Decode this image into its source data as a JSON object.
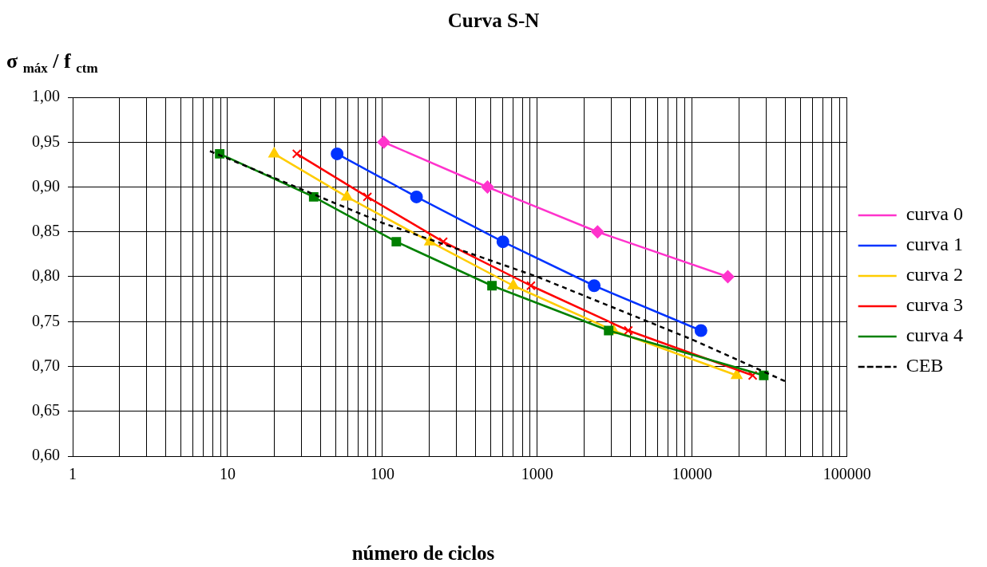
{
  "chart_data": {
    "type": "line",
    "title": "Curva S-N",
    "xlabel": "número de ciclos",
    "ylabel": "σ $_{máx}$ / f $_{ctm}$",
    "log": "x",
    "grid": true,
    "legend": "right",
    "xlim": [
      1,
      100000
    ],
    "xticks": [
      1,
      {
        "value": 2,
        "label": null
      },
      {
        "value": 3,
        "label": null
      },
      {
        "value": 4,
        "label": null
      },
      {
        "value": 5,
        "label": null
      },
      {
        "value": 6,
        "label": null
      },
      {
        "value": 7,
        "label": null
      },
      {
        "value": 8,
        "label": null
      },
      {
        "value": 9,
        "label": null
      },
      10,
      {
        "value": 20,
        "label": null
      },
      {
        "value": 30,
        "label": null
      },
      {
        "value": 40,
        "label": null
      },
      {
        "value": 50,
        "label": null
      },
      {
        "value": 60,
        "label": null
      },
      {
        "value": 70,
        "label": null
      },
      {
        "value": 80,
        "label": null
      },
      {
        "value": 90,
        "label": null
      },
      100,
      {
        "value": 200,
        "label": null
      },
      {
        "value": 300,
        "label": null
      },
      {
        "value": 400,
        "label": null
      },
      {
        "value": 500,
        "label": null
      },
      {
        "value": 600,
        "label": null
      },
      {
        "value": 700,
        "label": null
      },
      {
        "value": 800,
        "label": null
      },
      {
        "value": 900,
        "label": null
      },
      1000,
      {
        "value": 2000,
        "label": null
      },
      {
        "value": 3000,
        "label": null
      },
      {
        "value": 4000,
        "label": null
      },
      {
        "value": 5000,
        "label": null
      },
      {
        "value": 6000,
        "label": null
      },
      {
        "value": 7000,
        "label": null
      },
      {
        "value": 8000,
        "label": null
      },
      {
        "value": 9000,
        "label": null
      },
      10000,
      {
        "value": 20000,
        "label": null
      },
      {
        "value": 30000,
        "label": null
      },
      {
        "value": 40000,
        "label": null
      },
      {
        "value": 50000,
        "label": null
      },
      {
        "value": 60000,
        "label": null
      },
      {
        "value": 70000,
        "label": null
      },
      {
        "value": 80000,
        "label": null
      },
      {
        "value": 90000,
        "label": null
      },
      100000
    ],
    "ylim": [
      0.6,
      1.0
    ],
    "yticks": [
      {
        "value": 0.6,
        "label": "0,60"
      },
      {
        "value": 0.65,
        "label": "0,65"
      },
      {
        "value": 0.7,
        "label": "0,70"
      },
      {
        "value": 0.75,
        "label": "0,75"
      },
      {
        "value": 0.8,
        "label": "0,80"
      },
      {
        "value": 0.85,
        "label": "0,85"
      },
      {
        "value": 0.9,
        "label": "0,90"
      },
      {
        "value": 0.95,
        "label": "0,95"
      },
      {
        "value": 1.0,
        "label": "1,00"
      }
    ],
    "series": [
      {
        "name": "curva 0",
        "color": "#ff33cc",
        "marker": "diamond",
        "x": [
          102,
          477,
          2450,
          17000
        ],
        "values": [
          0.95,
          0.9,
          0.85,
          0.8
        ]
      },
      {
        "name": "curva 1",
        "color": "#0033ff",
        "marker": "circle",
        "x": [
          51,
          166,
          600,
          2330,
          11400
        ],
        "values": [
          0.937,
          0.889,
          0.839,
          0.79,
          0.74
        ]
      },
      {
        "name": "curva 2",
        "color": "#ffcc00",
        "marker": "triangle",
        "x": [
          20,
          59,
          203,
          700,
          3100,
          19400
        ],
        "values": [
          0.937,
          0.889,
          0.839,
          0.79,
          0.74,
          0.69
        ]
      },
      {
        "name": "curva 3",
        "color": "#ff0000",
        "marker": "cross",
        "x": [
          28,
          80,
          247,
          910,
          3870,
          24600
        ],
        "values": [
          0.937,
          0.889,
          0.839,
          0.79,
          0.74,
          0.69
        ]
      },
      {
        "name": "curva 4",
        "color": "#008000",
        "marker": "square",
        "x": [
          8.9,
          36,
          123,
          510,
          2890,
          29000
        ],
        "values": [
          0.937,
          0.889,
          0.839,
          0.79,
          0.74,
          0.69
        ]
      },
      {
        "name": "CEB",
        "color": "#000000",
        "marker": "none",
        "line_style": "dashed",
        "x": [
          7.7,
          100,
          1000,
          10000,
          40400
        ],
        "values": [
          0.94,
          0.86,
          0.8,
          0.73,
          0.683
        ]
      }
    ]
  }
}
